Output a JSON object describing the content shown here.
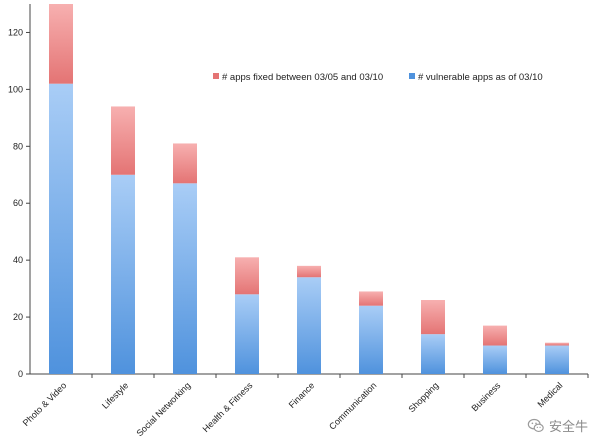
{
  "chart_data": {
    "type": "bar",
    "stacked": true,
    "categories": [
      "Photo & Video",
      "Lifestyle",
      "Social Networking",
      "Health & Fitness",
      "Finance",
      "Communication",
      "Shopping",
      "Business",
      "Medical"
    ],
    "series": [
      {
        "name": "# vulnerable apps as of 03/10",
        "values": [
          102,
          70,
          67,
          28,
          34,
          24,
          14,
          10,
          10
        ],
        "color_top": "#a9cdf6",
        "color_bottom": "#4f92dd"
      },
      {
        "name": "# apps fixed between 03/05 and 03/10",
        "values": [
          28,
          24,
          14,
          13,
          4,
          5,
          12,
          7,
          1
        ],
        "color_top": "#f7b0b0",
        "color_bottom": "#e47474"
      }
    ],
    "ylim": [
      0,
      130
    ],
    "yticks": [
      0,
      20,
      40,
      60,
      80,
      100,
      120
    ],
    "grid": false,
    "legend_position": "top-right",
    "title": "",
    "xlabel": "",
    "ylabel": ""
  },
  "legend": {
    "fixed_label": "# apps fixed between 03/05 and 03/10",
    "vulnerable_label": "# vulnerable apps as of 03/10"
  },
  "watermark": {
    "text": "安全牛",
    "icon": "wechat-icon"
  }
}
